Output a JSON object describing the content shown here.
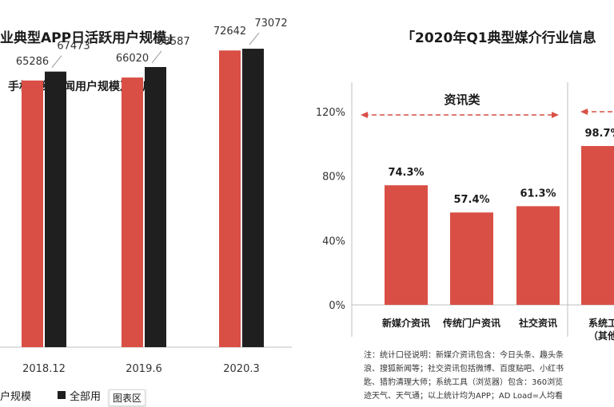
{
  "left_panel": {
    "title": "业典型APP日活跃用户规模」",
    "subtitle": "手机网络新闻用户规模及使用率",
    "legend": [
      "户规模",
      "全部用"
    ],
    "tooltip": "图表区"
  },
  "right_panel": {
    "title": "「2020年Q1典型媒介行业信息",
    "group_label": "资讯类",
    "note_lines": [
      "注：统计口径说明：新媒介资讯包含：今日头条、趣头条",
      "浪、搜狐新闻等；社交资讯包括微博、百度贴吧、小红书",
      "匙、猎豹清理大师；系统工具（浏览器）包含：360浏览",
      "迹天气、天气通；以上统计均为APP；AD Load=人均看"
    ]
  },
  "colors": {
    "red": "#d94f45",
    "dark": "#1f1f1f",
    "grid": "#bfbfbf",
    "dashed": "#d94f45"
  },
  "chart_data": [
    {
      "type": "bar",
      "title": "手机网络新闻用户规模及使用率",
      "categories": [
        "2018.12",
        "2019.6",
        "2020.3"
      ],
      "series": [
        {
          "name": "户规模",
          "values": [
            65286,
            66020,
            72642
          ],
          "color": "#d94f45"
        },
        {
          "name": "全部用",
          "values": [
            67473,
            68587,
            73072
          ],
          "color": "#1f1f1f"
        }
      ],
      "ylim": [
        0,
        85000
      ]
    },
    {
      "type": "bar",
      "title": "「2020年Q1典型媒介行业信息",
      "categories": [
        "新媒介资讯",
        "传统门户资讯",
        "社交资讯",
        "系统工"
      ],
      "category_sublabels": [
        "",
        "",
        "",
        "（其他"
      ],
      "values": [
        74.3,
        57.4,
        61.3,
        98.7
      ],
      "value_labels": [
        "74.3%",
        "57.4%",
        "61.3%",
        "98.7%"
      ],
      "yticks": [
        "0%",
        "40%",
        "80%",
        "120%"
      ],
      "ylim": [
        0,
        120
      ]
    }
  ]
}
